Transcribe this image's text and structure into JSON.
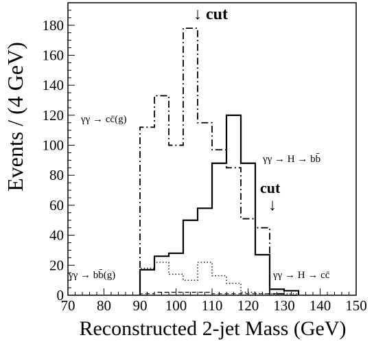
{
  "chart_data": {
    "type": "histogram",
    "title": "",
    "xlabel": "Reconstructed 2-jet Mass (GeV)",
    "ylabel": "Events / (4 GeV)",
    "xlim": [
      70,
      150
    ],
    "ylim": [
      0,
      195
    ],
    "x_ticks": [
      70,
      80,
      90,
      100,
      110,
      120,
      130,
      140,
      150
    ],
    "y_ticks": [
      0,
      20,
      40,
      60,
      80,
      100,
      120,
      140,
      160,
      180
    ],
    "bin_edges": [
      90,
      94,
      98,
      102,
      106,
      110,
      114,
      118,
      122,
      126,
      130,
      134
    ],
    "series": [
      {
        "name": "γγ → cc̄(g)",
        "style": "dash-dot",
        "values": [
          112,
          133,
          100,
          178,
          115,
          97,
          85,
          51,
          45,
          1,
          0
        ]
      },
      {
        "name": "γγ → H → bb̄",
        "style": "solid",
        "values": [
          17,
          26,
          28,
          50,
          58,
          88,
          120,
          88,
          27,
          4,
          3
        ]
      },
      {
        "name": "γγ → bb̄(g)",
        "style": "dotted",
        "values": [
          18,
          22,
          14,
          10,
          22,
          13,
          8,
          2,
          1,
          1,
          1
        ]
      },
      {
        "name": "γγ → H → cc̄",
        "style": "dashed",
        "values": [
          1,
          2,
          2,
          2,
          2,
          1,
          1,
          1,
          1,
          1,
          0
        ]
      }
    ],
    "annotations": [
      {
        "text": "↓ cut",
        "x": 105
      },
      {
        "text": "cut",
        "x": 126
      },
      {
        "text": "↓",
        "x": 126
      }
    ],
    "labels": {
      "ccg": "γγ → cc̄(g)",
      "hbb": "γγ → H → bb̄",
      "bbg": "γγ → bb̄(g)",
      "hcc": "γγ → H → cc̄"
    },
    "grid": false
  }
}
